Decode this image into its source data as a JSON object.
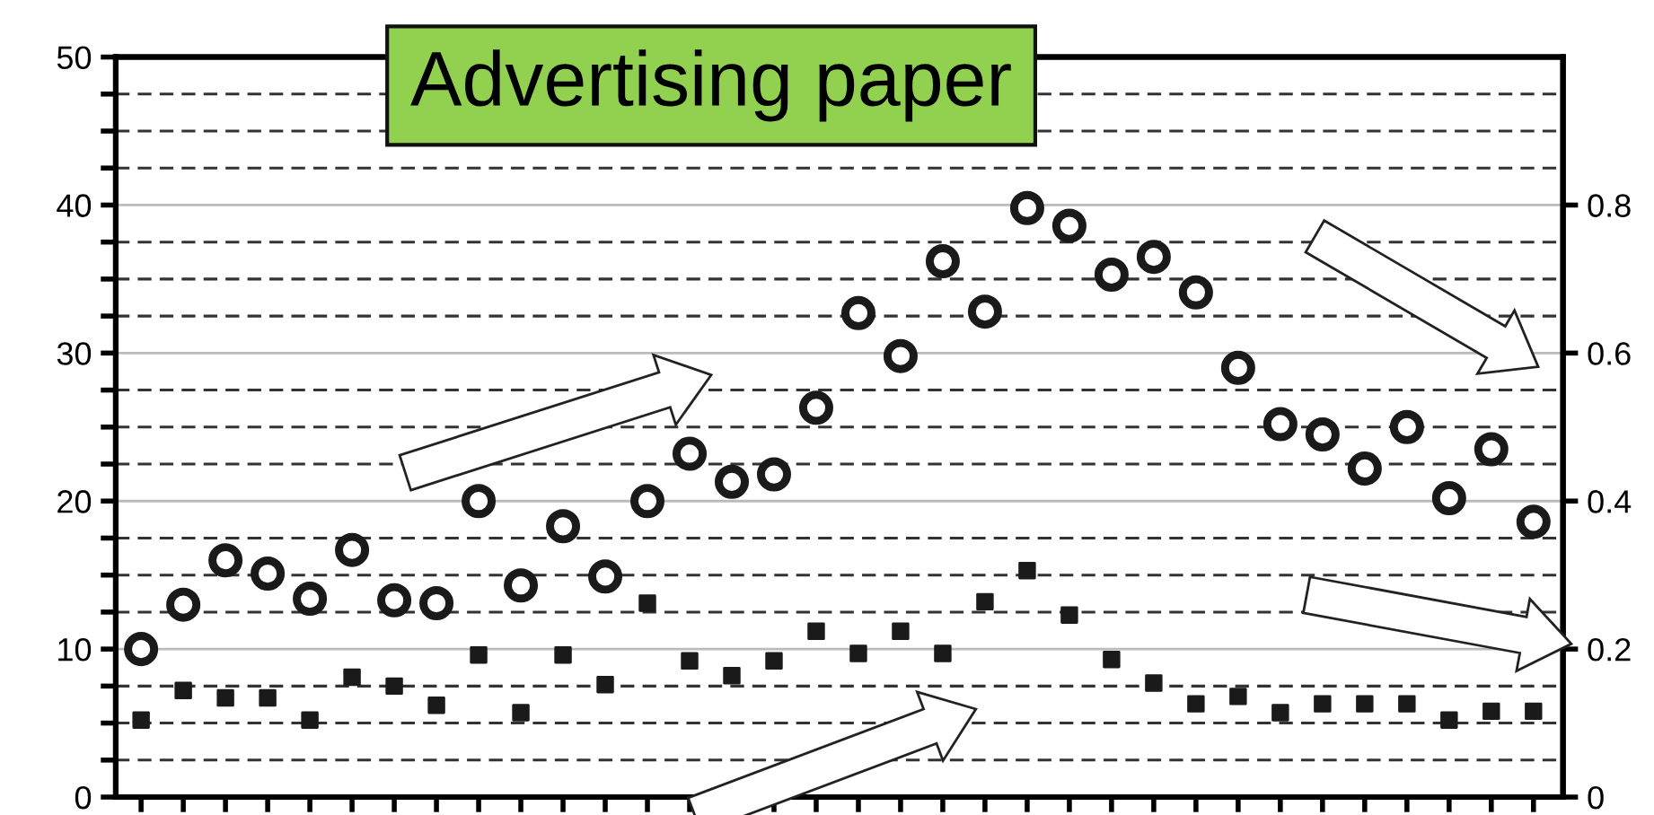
{
  "chart_data": {
    "type": "scatter",
    "categories": [
      null,
      null,
      null,
      null,
      null,
      null,
      null,
      null,
      null,
      null,
      null,
      null,
      null,
      null,
      null,
      null,
      null,
      null,
      null,
      null,
      null,
      null,
      null,
      null,
      null,
      null,
      null,
      null,
      null,
      null,
      null,
      null,
      null,
      null
    ],
    "series": [
      {
        "color": "#1a1a1a",
        "marker": "circle",
        "values": [
          10.0,
          13.0,
          16.0,
          15.1,
          13.4,
          16.7,
          13.3,
          13.1,
          20.0,
          14.3,
          18.3,
          14.9,
          20.0,
          23.2,
          21.3,
          21.8,
          26.3,
          32.7,
          29.8,
          36.2,
          32.8,
          39.8,
          38.6,
          35.3,
          36.5,
          34.1,
          29.0,
          25.2,
          24.5,
          22.2,
          25.0,
          20.2,
          23.5,
          18.6
        ]
      },
      {
        "color": "#1a1a1a",
        "marker": "square",
        "values": [
          5.2,
          7.2,
          6.7,
          6.7,
          5.2,
          8.1,
          7.5,
          6.2,
          9.6,
          5.7,
          9.6,
          7.6,
          13.1,
          9.2,
          8.2,
          9.2,
          11.2,
          9.7,
          11.2,
          9.7,
          13.2,
          15.3,
          12.3,
          9.3,
          7.7,
          6.3,
          6.8,
          5.7,
          6.3,
          6.3,
          6.3,
          5.2,
          5.8,
          5.8
        ]
      }
    ],
    "ylim": [
      0,
      50
    ],
    "yticks": [
      0,
      {
        "value": 2.5,
        "label": null
      },
      {
        "value": 5,
        "label": null
      },
      {
        "value": 7.5,
        "label": null
      },
      10,
      {
        "value": 12.5,
        "label": null
      },
      {
        "value": 15,
        "label": null
      },
      {
        "value": 17.5,
        "label": null
      },
      20,
      {
        "value": 22.5,
        "label": null
      },
      {
        "value": 25,
        "label": null
      },
      {
        "value": 27.5,
        "label": null
      },
      30,
      {
        "value": 32.5,
        "label": null
      },
      {
        "value": 35,
        "label": null
      },
      {
        "value": 37.5,
        "label": null
      },
      40,
      {
        "value": 42.5,
        "label": null
      },
      {
        "value": 45,
        "label": null
      },
      {
        "value": 47.5,
        "label": null
      },
      50
    ],
    "y2lim": [
      0,
      1.0
    ],
    "y2ticks": [
      0,
      0.2,
      0.4,
      0.6,
      0.8
    ],
    "grid": "y",
    "tick_labels": "y",
    "legend": false,
    "annotations": [
      "Advertising paper"
    ]
  }
}
